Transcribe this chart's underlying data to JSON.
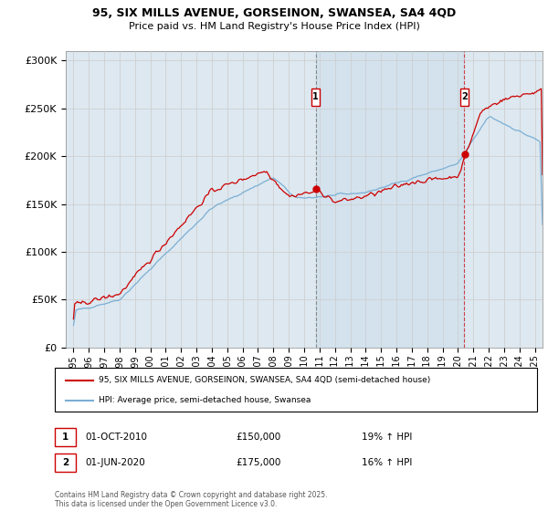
{
  "title_line1": "95, SIX MILLS AVENUE, GORSEINON, SWANSEA, SA4 4QD",
  "title_line2": "Price paid vs. HM Land Registry's House Price Index (HPI)",
  "ylabel_ticks": [
    "£0",
    "£50K",
    "£100K",
    "£150K",
    "£200K",
    "£250K",
    "£300K"
  ],
  "ytick_values": [
    0,
    50000,
    100000,
    150000,
    200000,
    250000,
    300000
  ],
  "ylim": [
    0,
    310000
  ],
  "xlim_start": 1994.5,
  "xlim_end": 2025.5,
  "xticks": [
    1995,
    1996,
    1997,
    1998,
    1999,
    2000,
    2001,
    2002,
    2003,
    2004,
    2005,
    2006,
    2007,
    2008,
    2009,
    2010,
    2011,
    2012,
    2013,
    2014,
    2015,
    2016,
    2017,
    2018,
    2019,
    2020,
    2021,
    2022,
    2023,
    2024,
    2025
  ],
  "grid_color": "#cccccc",
  "plot_bg_color": "#dde8f0",
  "line1_color": "#cc0000",
  "line2_color": "#7bafd4",
  "marker1_x": 2010.75,
  "marker2_x": 2020.42,
  "marker1_price": 150000,
  "marker2_price": 175000,
  "legend_label1": "95, SIX MILLS AVENUE, GORSEINON, SWANSEA, SA4 4QD (semi-detached house)",
  "legend_label2": "HPI: Average price, semi-detached house, Swansea",
  "annotation1_label": "1",
  "annotation1_date": "01-OCT-2010",
  "annotation1_price": "£150,000",
  "annotation1_hpi": "19% ↑ HPI",
  "annotation2_label": "2",
  "annotation2_date": "01-JUN-2020",
  "annotation2_price": "£175,000",
  "annotation2_hpi": "16% ↑ HPI",
  "footnote": "Contains HM Land Registry data © Crown copyright and database right 2025.\nThis data is licensed under the Open Government Licence v3.0."
}
